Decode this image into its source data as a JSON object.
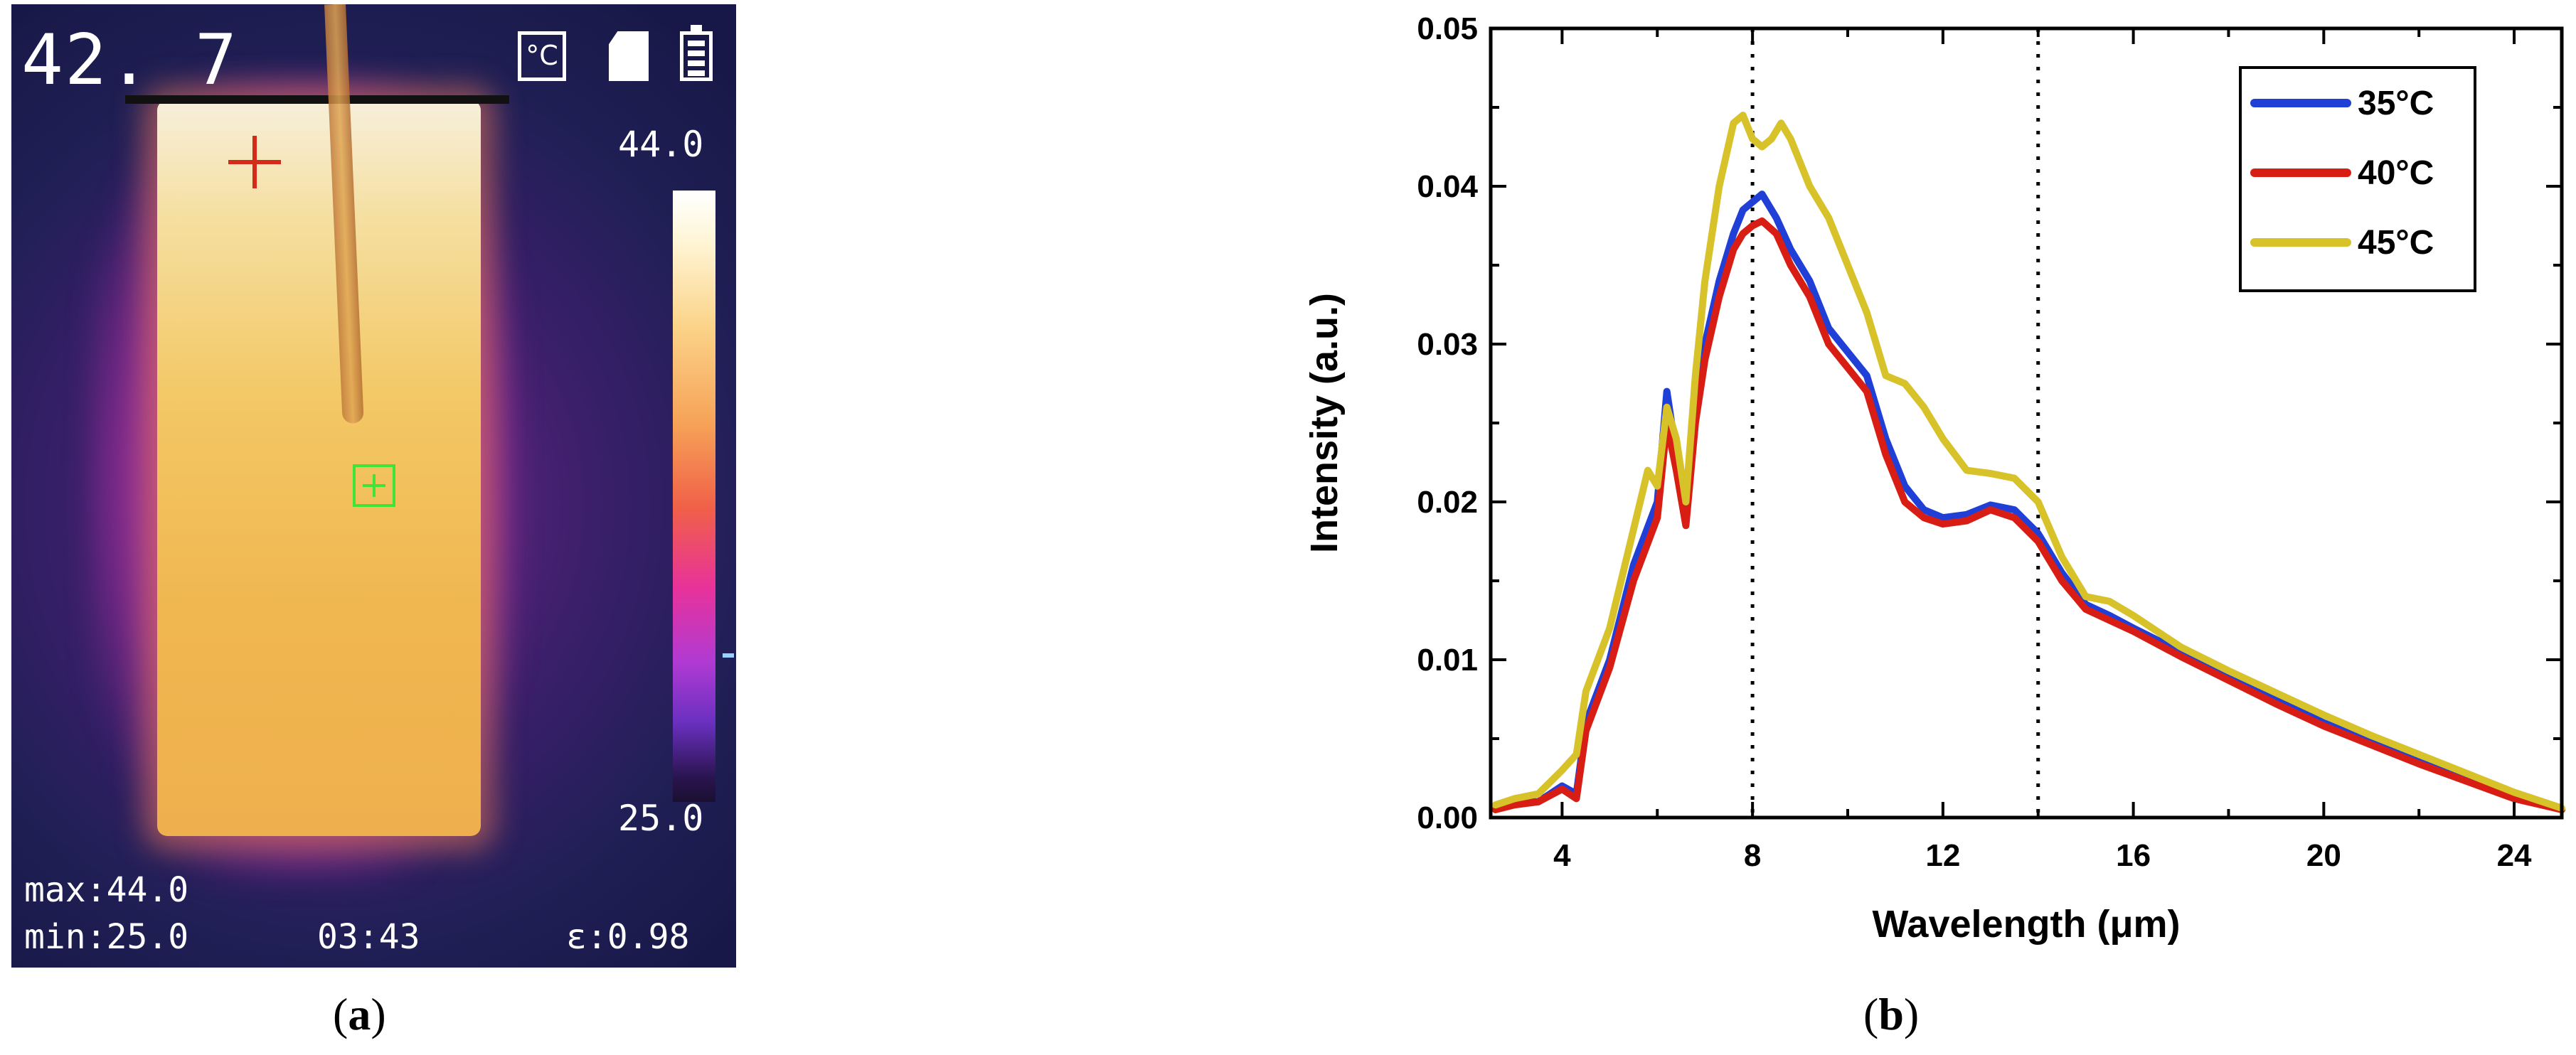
{
  "panel_a": {
    "label": "a",
    "current_temperature": "42. 7",
    "unit_icon": "°C",
    "scale_max": "44.0",
    "scale_min": "25.0",
    "max_text": "max:44.0",
    "min_text": "min:25.0",
    "time_text": "03:43",
    "emissivity_text": "ε:0.98",
    "icons": [
      "celsius-unit-icon",
      "sd-card-icon",
      "battery-icon",
      "crosshair-icon",
      "center-spot-icon"
    ],
    "colors": {
      "crosshair": "#d42a1a",
      "center_box": "#3fe33a"
    }
  },
  "panel_b": {
    "label": "b"
  },
  "chart_data": {
    "type": "line",
    "title": "",
    "xlabel": "Wavelength (μm)",
    "ylabel": "Intensity (a.u.)",
    "xlim": [
      2.5,
      25
    ],
    "ylim": [
      0,
      0.05
    ],
    "xticks": [
      4,
      8,
      12,
      16,
      20,
      24
    ],
    "xtick_labels": [
      "4",
      "8",
      "12",
      "16",
      "20",
      "24"
    ],
    "yticks": [
      0,
      0.01,
      0.02,
      0.03,
      0.04,
      0.05
    ],
    "ytick_labels": [
      "0.00",
      "0.01",
      "0.02",
      "0.03",
      "0.04",
      "0.05"
    ],
    "grid": false,
    "legend_position": "top-right",
    "reference_lines_x": [
      8,
      14
    ],
    "series": [
      {
        "name": "35°C",
        "color": "#1f3fd6",
        "x": [
          2.6,
          3.0,
          3.5,
          4.0,
          4.3,
          4.5,
          5.0,
          5.5,
          6.0,
          6.2,
          6.4,
          6.6,
          6.8,
          7.0,
          7.3,
          7.6,
          7.8,
          8.0,
          8.2,
          8.5,
          8.8,
          9.2,
          9.6,
          10.0,
          10.4,
          10.8,
          11.2,
          11.6,
          12.0,
          12.5,
          13.0,
          13.5,
          14.0,
          14.5,
          15.0,
          15.5,
          16.0,
          17.0,
          18.0,
          19.0,
          20.0,
          21.0,
          22.0,
          23.0,
          24.0,
          25.0
        ],
        "y": [
          0.0005,
          0.001,
          0.001,
          0.002,
          0.0015,
          0.006,
          0.01,
          0.016,
          0.02,
          0.027,
          0.023,
          0.019,
          0.026,
          0.03,
          0.034,
          0.037,
          0.0385,
          0.039,
          0.0395,
          0.038,
          0.036,
          0.034,
          0.031,
          0.0295,
          0.028,
          0.024,
          0.021,
          0.0195,
          0.019,
          0.0192,
          0.0198,
          0.0195,
          0.018,
          0.0155,
          0.0135,
          0.0128,
          0.012,
          0.0105,
          0.009,
          0.0075,
          0.006,
          0.0048,
          0.0036,
          0.0024,
          0.0013,
          0.0005
        ]
      },
      {
        "name": "40°C",
        "color": "#d81e14",
        "x": [
          2.6,
          3.0,
          3.5,
          4.0,
          4.3,
          4.5,
          5.0,
          5.5,
          6.0,
          6.2,
          6.4,
          6.6,
          6.8,
          7.0,
          7.3,
          7.6,
          7.8,
          8.0,
          8.2,
          8.5,
          8.8,
          9.2,
          9.6,
          10.0,
          10.4,
          10.8,
          11.2,
          11.6,
          12.0,
          12.5,
          13.0,
          13.5,
          14.0,
          14.5,
          15.0,
          15.5,
          16.0,
          17.0,
          18.0,
          19.0,
          20.0,
          21.0,
          22.0,
          23.0,
          24.0,
          25.0
        ],
        "y": [
          0.0005,
          0.0008,
          0.001,
          0.0018,
          0.0012,
          0.0055,
          0.0095,
          0.015,
          0.019,
          0.025,
          0.022,
          0.0185,
          0.025,
          0.029,
          0.033,
          0.036,
          0.037,
          0.0375,
          0.0378,
          0.037,
          0.035,
          0.033,
          0.03,
          0.0285,
          0.027,
          0.023,
          0.02,
          0.019,
          0.0186,
          0.0188,
          0.0195,
          0.019,
          0.0175,
          0.015,
          0.0132,
          0.0125,
          0.0118,
          0.0102,
          0.0087,
          0.0072,
          0.0058,
          0.0046,
          0.0034,
          0.0023,
          0.0012,
          0.0005
        ]
      },
      {
        "name": "45°C",
        "color": "#d8c22a",
        "x": [
          2.6,
          3.0,
          3.5,
          4.0,
          4.3,
          4.5,
          5.0,
          5.4,
          5.8,
          6.0,
          6.2,
          6.4,
          6.6,
          6.8,
          7.0,
          7.3,
          7.6,
          7.8,
          8.0,
          8.2,
          8.4,
          8.6,
          8.8,
          9.2,
          9.6,
          10.0,
          10.4,
          10.8,
          11.2,
          11.6,
          12.0,
          12.5,
          13.0,
          13.5,
          14.0,
          14.5,
          15.0,
          15.5,
          16.0,
          17.0,
          18.0,
          19.0,
          20.0,
          21.0,
          22.0,
          23.0,
          24.0,
          25.0
        ],
        "y": [
          0.0008,
          0.0012,
          0.0015,
          0.003,
          0.004,
          0.008,
          0.012,
          0.017,
          0.022,
          0.021,
          0.026,
          0.024,
          0.02,
          0.028,
          0.034,
          0.04,
          0.044,
          0.0445,
          0.043,
          0.0425,
          0.043,
          0.044,
          0.043,
          0.04,
          0.038,
          0.035,
          0.032,
          0.028,
          0.0275,
          0.026,
          0.024,
          0.022,
          0.0218,
          0.0215,
          0.02,
          0.0165,
          0.014,
          0.0137,
          0.0128,
          0.0108,
          0.0093,
          0.0079,
          0.0065,
          0.0052,
          0.004,
          0.0028,
          0.0016,
          0.0006
        ]
      }
    ]
  }
}
